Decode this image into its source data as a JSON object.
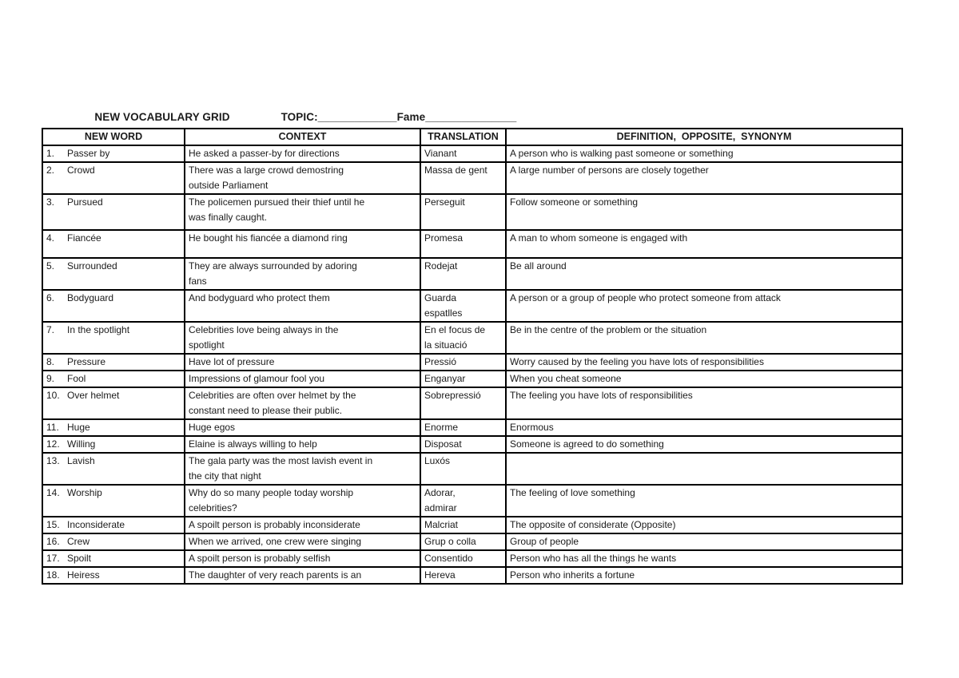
{
  "heading": {
    "title": "NEW VOCABULARY GRID",
    "topic": "TOPIC:_____________Fame_______________"
  },
  "table": {
    "headers": [
      "NEW WORD",
      "CONTEXT",
      "TRANSLATION",
      "DEFINITION,  OPPOSITE,  SYNONYM"
    ],
    "rows": [
      {
        "num": "1.",
        "word": "Passer by",
        "context": "He asked a passer-by for directions",
        "translation": "Vianant",
        "definition": "A person who is walking past someone or something"
      },
      {
        "num": "2.",
        "word": "Crowd",
        "context": "There was a large crowd demostring\noutside Parliament",
        "translation": "Massa de gent",
        "definition": "A large number of persons are closely together"
      },
      {
        "num": "3.",
        "word": "Pursued",
        "context": "The policemen pursued their thief until he\nwas finally caught.",
        "translation": "Perseguit",
        "definition": "Follow someone or something"
      },
      {
        "num": "4.",
        "word": "Fiancée",
        "context": "He bought his fiancée a diamond ring",
        "translation": "Promesa",
        "definition": "A man to whom someone is engaged with"
      },
      {
        "num": "5.",
        "word": "Surrounded",
        "context": "They are always surrounded by adoring\nfans",
        "translation": "Rodejat",
        "definition": "Be all around"
      },
      {
        "num": "6.",
        "word": "Bodyguard",
        "context": "And bodyguard who protect them",
        "translation": "Guarda\nespatlles",
        "definition": "A person or a group of people who protect someone from attack"
      },
      {
        "num": "7.",
        "word": "In the spotlight",
        "context": "Celebrities love being always in the\nspotlight",
        "translation": "En el focus de\nla situació",
        "definition": "Be in the centre of the problem or the situation"
      },
      {
        "num": "8.",
        "word": "Pressure",
        "context": "Have lot of pressure",
        "translation": "Pressió",
        "definition": "Worry caused by the feeling you have lots of responsibilities"
      },
      {
        "num": "9.",
        "word": "Fool",
        "context": "Impressions of glamour fool you",
        "translation": "Enganyar",
        "definition": "When you cheat someone"
      },
      {
        "num": "10.",
        "word": "Over helmet",
        "context": "Celebrities are often over helmet by the\nconstant need to please their public.",
        "translation": "Sobrepressió",
        "definition": "The feeling you have lots of responsibilities"
      },
      {
        "num": "11.",
        "word": "Huge",
        "context": "Huge egos",
        "translation": "Enorme",
        "definition": "Enormous"
      },
      {
        "num": "12.",
        "word": "Willing",
        "context": "Elaine is always willing to help",
        "translation": "Disposat",
        "definition": "Someone is agreed to do something"
      },
      {
        "num": "13.",
        "word": "Lavish",
        "context": "The gala party was the most lavish event in\nthe city that night",
        "translation": "Luxós",
        "definition": ""
      },
      {
        "num": "14.",
        "word": "Worship",
        "context": "Why do so many people today worship\ncelebrities?",
        "translation": "Adorar,\nadmirar",
        "definition": "The feeling of love something"
      },
      {
        "num": "15.",
        "word": "Inconsiderate",
        "context": "A spoilt person is probably inconsiderate",
        "translation": "Malcriat",
        "definition": "The opposite of considerate (Opposite)"
      },
      {
        "num": "16.",
        "word": "Crew",
        "context": "When we arrived, one crew were singing",
        "translation": "Grup o colla",
        "definition": "Group of people"
      },
      {
        "num": "17.",
        "word": "Spoilt",
        "context": "A spoilt person is probably selfish",
        "translation": "Consentido",
        "definition": "Person who has all the things he wants"
      },
      {
        "num": "18.",
        "word": "Heiress",
        "context": "The daughter of very reach parents is an",
        "translation": "Hereva",
        "definition": "Person who inherits a fortune"
      }
    ]
  }
}
